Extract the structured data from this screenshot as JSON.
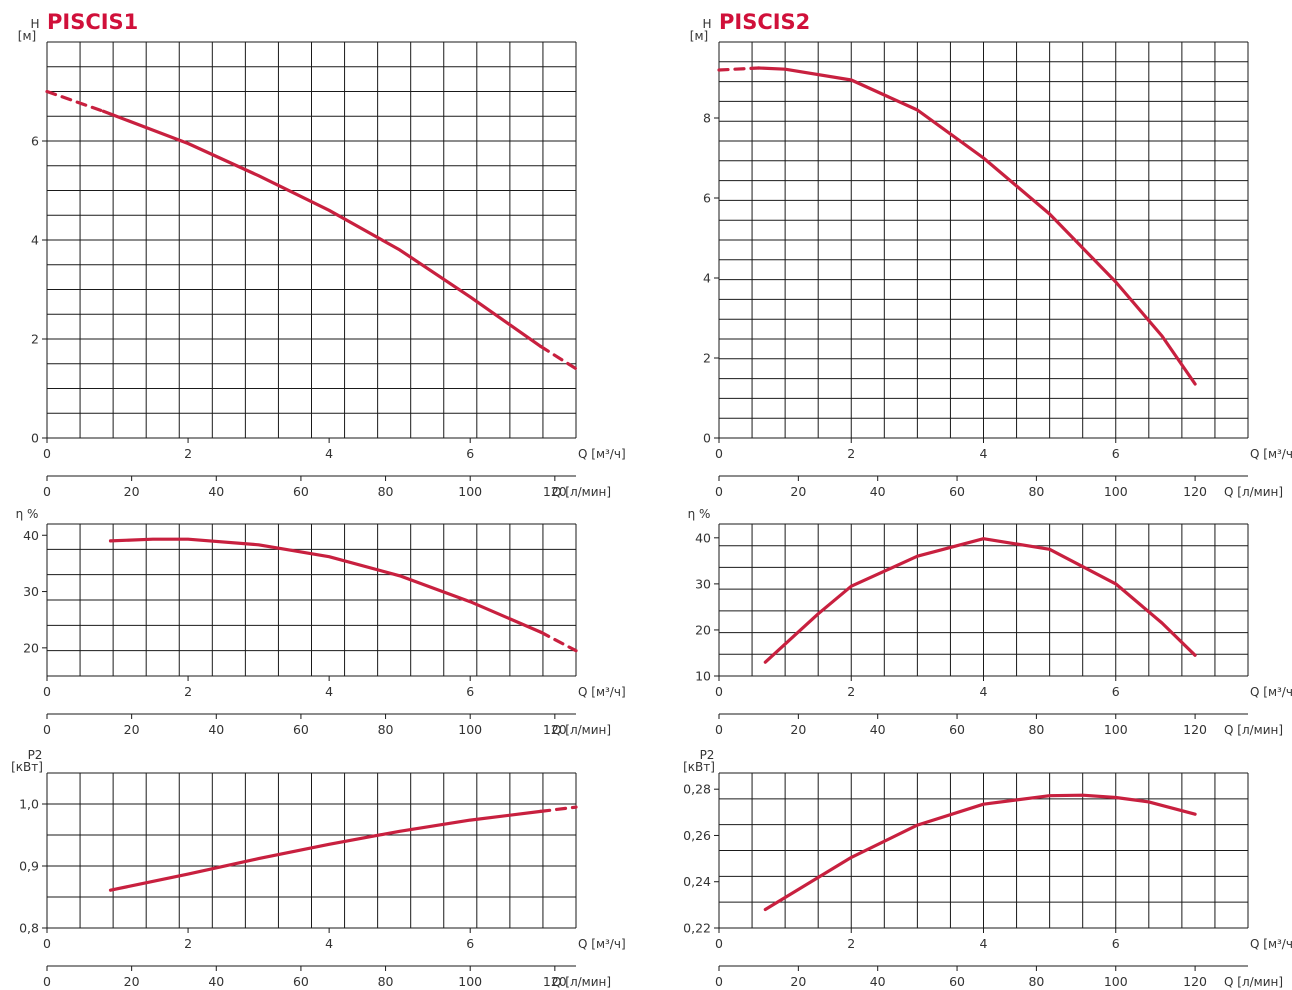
{
  "colors": {
    "curve": "#c8203f",
    "title": "#d0103a",
    "grid": "#1a1a1a",
    "text": "#333333"
  },
  "panels": [
    {
      "title": "PISCIS1",
      "charts": [
        {
          "type": "line",
          "ylabel": "H",
          "yunit": "[м]",
          "x2label": "Q [м³/ч]",
          "x1label": "Q [л/мин]",
          "xlim": [
            0,
            7.5
          ],
          "ylim": [
            0,
            8
          ],
          "xticks": [
            "0",
            "2",
            "4",
            "6"
          ],
          "xticks_flow": [
            "0",
            "20",
            "40",
            "60",
            "80",
            "100",
            "120"
          ],
          "yticks": [
            "0",
            "2",
            "4",
            "6"
          ],
          "series": [
            {
              "style": "dashed",
              "x": [
                0,
                0.8
              ],
              "y": [
                7.0,
                6.6
              ]
            },
            {
              "style": "solid",
              "x": [
                0.8,
                2,
                3,
                4,
                5,
                6,
                7.0
              ],
              "y": [
                6.6,
                5.95,
                5.3,
                4.6,
                3.8,
                2.85,
                1.85
              ]
            },
            {
              "style": "dashed",
              "x": [
                7.0,
                7.5
              ],
              "y": [
                1.85,
                1.4
              ]
            }
          ]
        },
        {
          "type": "line",
          "ylabel": "η %",
          "yunit": "",
          "x2label": "Q [м³/ч]",
          "x1label": "Q [л/мин]",
          "xlim": [
            0,
            7.5
          ],
          "ylim": [
            15,
            42
          ],
          "xticks": [
            "0",
            "2",
            "4",
            "6"
          ],
          "xticks_flow": [
            "0",
            "20",
            "40",
            "60",
            "80",
            "100",
            "120"
          ],
          "yticks": [
            "20",
            "30",
            "40"
          ],
          "series": [
            {
              "style": "solid",
              "x": [
                0.9,
                1.5,
                2,
                3,
                4,
                5,
                6,
                7.0
              ],
              "y": [
                39.0,
                39.3,
                39.3,
                38.3,
                36.2,
                32.8,
                28.2,
                22.8
              ]
            },
            {
              "style": "dashed",
              "x": [
                7.0,
                7.5
              ],
              "y": [
                22.8,
                19.5
              ]
            }
          ]
        },
        {
          "type": "line",
          "ylabel": "P2",
          "yunit": "[кВт]",
          "x2label": "Q [м³/ч]",
          "x1label": "Q [л/мин]",
          "xlim": [
            0,
            7.5
          ],
          "ylim": [
            0.8,
            1.05
          ],
          "xticks": [
            "0",
            "2",
            "4",
            "6"
          ],
          "xticks_flow": [
            "0",
            "20",
            "40",
            "60",
            "80",
            "100",
            "120"
          ],
          "yticks": [
            "0,8",
            "0,9",
            "1,0"
          ],
          "series": [
            {
              "style": "solid",
              "x": [
                0.9,
                2,
                3,
                4,
                5,
                6,
                7.0
              ],
              "y": [
                0.861,
                0.887,
                0.912,
                0.935,
                0.956,
                0.974,
                0.988
              ]
            },
            {
              "style": "dashed",
              "x": [
                7.0,
                7.5
              ],
              "y": [
                0.988,
                0.995
              ]
            }
          ]
        }
      ]
    },
    {
      "title": "PISCIS2",
      "charts": [
        {
          "type": "line",
          "ylabel": "H",
          "yunit": "[м]",
          "x2label": "Q [м³/ч]",
          "x1label": "Q [л/мин]",
          "xlim": [
            0,
            8
          ],
          "ylim": [
            0,
            9.9
          ],
          "xticks": [
            "0",
            "2",
            "4",
            "6"
          ],
          "xticks_flow": [
            "0",
            "20",
            "40",
            "60",
            "80",
            "100",
            "120"
          ],
          "yticks": [
            "0",
            "2",
            "4",
            "6",
            "8"
          ],
          "series": [
            {
              "style": "dashed",
              "x": [
                0,
                0.6
              ],
              "y": [
                9.2,
                9.25
              ]
            },
            {
              "style": "solid",
              "x": [
                0.6,
                1,
                2,
                3,
                4,
                5,
                6,
                6.7,
                7.2
              ],
              "y": [
                9.25,
                9.22,
                8.95,
                8.2,
                7.0,
                5.6,
                3.9,
                2.55,
                1.35
              ]
            }
          ]
        },
        {
          "type": "line",
          "ylabel": "η %",
          "yunit": "",
          "x2label": "Q [м³/ч]",
          "x1label": "Q [л/мин]",
          "xlim": [
            0,
            8
          ],
          "ylim": [
            10,
            43
          ],
          "xticks": [
            "0",
            "2",
            "4",
            "6"
          ],
          "xticks_flow": [
            "0",
            "20",
            "40",
            "60",
            "80",
            "100",
            "120"
          ],
          "yticks": [
            "10",
            "20",
            "30",
            "40"
          ],
          "series": [
            {
              "style": "solid",
              "x": [
                0.7,
                1.5,
                2,
                3,
                4,
                5,
                6,
                6.7,
                7.2
              ],
              "y": [
                13.0,
                23.5,
                29.5,
                36.0,
                39.8,
                37.5,
                30.0,
                21.5,
                14.5
              ]
            }
          ]
        },
        {
          "type": "line",
          "ylabel": "P2",
          "yunit": "[кВт]",
          "x2label": "Q [м³/ч]",
          "x1label": "Q [л/мин]",
          "xlim": [
            0,
            8
          ],
          "ylim": [
            0.22,
            0.287
          ],
          "xticks": [
            "0",
            "2",
            "4",
            "6"
          ],
          "xticks_flow": [
            "0",
            "20",
            "40",
            "60",
            "80",
            "100",
            "120"
          ],
          "yticks": [
            "0,22",
            "0,24",
            "0,26",
            "0,28"
          ],
          "series": [
            {
              "style": "solid",
              "x": [
                0.7,
                2,
                3,
                4,
                5,
                5.5,
                6,
                6.5,
                7.2
              ],
              "y": [
                0.228,
                0.2505,
                0.2645,
                0.2735,
                0.2772,
                0.2774,
                0.2764,
                0.2745,
                0.2692
              ]
            }
          ]
        }
      ]
    }
  ]
}
